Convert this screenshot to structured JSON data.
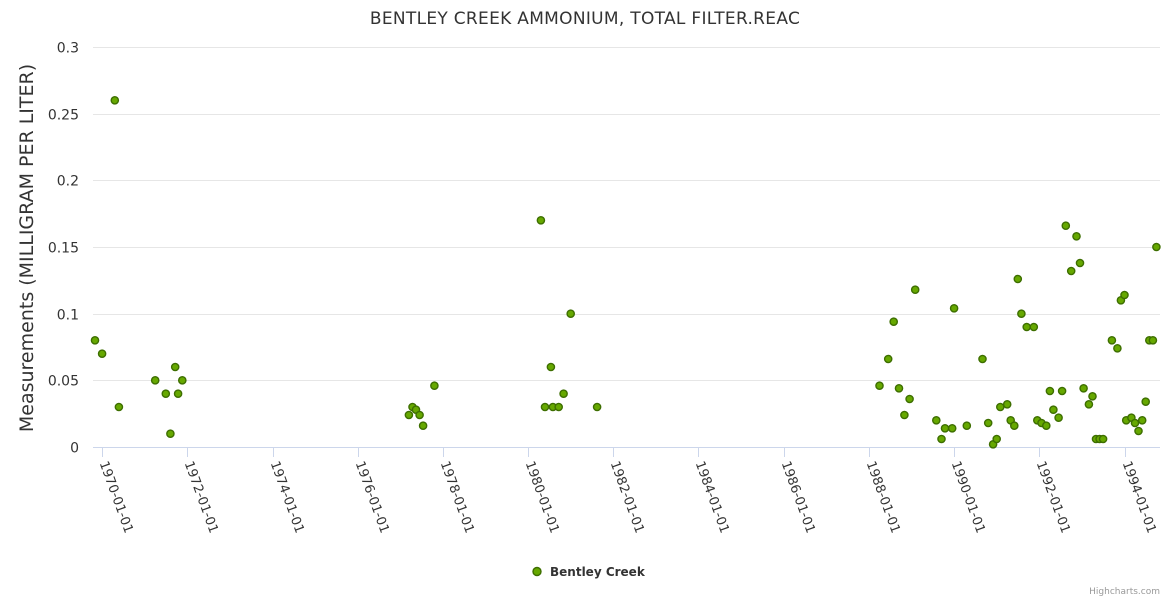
{
  "chart_data": {
    "type": "scatter",
    "title": "BENTLEY CREEK AMMONIUM, TOTAL FILTER.REAC",
    "ylabel": "Measurements (MILLIGRAM PER LITER)",
    "xlabel": "",
    "ylim": [
      0,
      0.3
    ],
    "yticks": [
      "0",
      "0.05",
      "0.1",
      "0.15",
      "0.2",
      "0.25",
      "0.3"
    ],
    "xlim": [
      "1969-10-15",
      "1994-11-01"
    ],
    "xticks": [
      "1970-01-01",
      "1972-01-01",
      "1974-01-01",
      "1976-01-01",
      "1978-01-01",
      "1980-01-01",
      "1982-01-01",
      "1984-01-01",
      "1986-01-01",
      "1988-01-01",
      "1990-01-01",
      "1992-01-01",
      "1994-01-01"
    ],
    "grid": true,
    "legend_position": "bottom-center",
    "marker_color": "#66a800",
    "marker_stroke": "#3d6e00",
    "series": [
      {
        "name": "Bentley Creek",
        "points": [
          [
            "1969-11-01",
            0.08
          ],
          [
            "1970-01-01",
            0.07
          ],
          [
            "1970-04-20",
            0.26
          ],
          [
            "1970-05-25",
            0.03
          ],
          [
            "1971-04-01",
            0.05
          ],
          [
            "1971-07-01",
            0.04
          ],
          [
            "1971-08-10",
            0.01
          ],
          [
            "1971-09-20",
            0.06
          ],
          [
            "1971-10-15",
            0.04
          ],
          [
            "1971-11-20",
            0.05
          ],
          [
            "1977-03-15",
            0.024
          ],
          [
            "1977-04-15",
            0.03
          ],
          [
            "1977-05-15",
            0.028
          ],
          [
            "1977-06-15",
            0.024
          ],
          [
            "1977-07-15",
            0.016
          ],
          [
            "1977-10-20",
            0.046
          ],
          [
            "1980-04-20",
            0.17
          ],
          [
            "1980-05-25",
            0.03
          ],
          [
            "1980-07-15",
            0.06
          ],
          [
            "1980-08-01",
            0.03
          ],
          [
            "1980-09-20",
            0.03
          ],
          [
            "1980-11-01",
            0.04
          ],
          [
            "1981-01-01",
            0.1
          ],
          [
            "1981-08-15",
            0.03
          ],
          [
            "1988-04-01",
            0.046
          ],
          [
            "1988-06-15",
            0.066
          ],
          [
            "1988-08-01",
            0.094
          ],
          [
            "1988-09-15",
            0.044
          ],
          [
            "1988-11-01",
            0.024
          ],
          [
            "1988-12-15",
            0.036
          ],
          [
            "1989-02-01",
            0.118
          ],
          [
            "1989-08-01",
            0.02
          ],
          [
            "1989-09-15",
            0.006
          ],
          [
            "1989-10-15",
            0.014
          ],
          [
            "1989-12-15",
            0.014
          ],
          [
            "1990-01-01",
            0.104
          ],
          [
            "1990-04-20",
            0.016
          ],
          [
            "1990-09-01",
            0.066
          ],
          [
            "1990-10-20",
            0.018
          ],
          [
            "1990-12-01",
            0.002
          ],
          [
            "1991-01-01",
            0.006
          ],
          [
            "1991-02-01",
            0.03
          ],
          [
            "1991-04-01",
            0.032
          ],
          [
            "1991-05-01",
            0.02
          ],
          [
            "1991-06-01",
            0.016
          ],
          [
            "1991-07-01",
            0.126
          ],
          [
            "1991-08-01",
            0.1
          ],
          [
            "1991-09-15",
            0.09
          ],
          [
            "1991-11-15",
            0.09
          ],
          [
            "1991-12-15",
            0.02
          ],
          [
            "1992-01-20",
            0.018
          ],
          [
            "1992-03-01",
            0.016
          ],
          [
            "1992-04-01",
            0.042
          ],
          [
            "1992-05-01",
            0.028
          ],
          [
            "1992-06-15",
            0.022
          ],
          [
            "1992-07-15",
            0.042
          ],
          [
            "1992-08-15",
            0.166
          ],
          [
            "1992-10-01",
            0.132
          ],
          [
            "1992-11-15",
            0.158
          ],
          [
            "1992-12-15",
            0.138
          ],
          [
            "1993-01-15",
            0.044
          ],
          [
            "1993-03-01",
            0.032
          ],
          [
            "1993-04-01",
            0.038
          ],
          [
            "1993-05-01",
            0.006
          ],
          [
            "1993-06-01",
            0.006
          ],
          [
            "1993-07-01",
            0.006
          ],
          [
            "1993-09-15",
            0.08
          ],
          [
            "1993-11-01",
            0.074
          ],
          [
            "1993-12-01",
            0.11
          ],
          [
            "1994-01-01",
            0.114
          ],
          [
            "1994-01-15",
            0.02
          ],
          [
            "1994-03-01",
            0.022
          ],
          [
            "1994-04-01",
            0.018
          ],
          [
            "1994-05-01",
            0.012
          ],
          [
            "1994-06-01",
            0.02
          ],
          [
            "1994-07-01",
            0.034
          ],
          [
            "1994-08-01",
            0.08
          ],
          [
            "1994-09-01",
            0.08
          ],
          [
            "1994-10-01",
            0.15
          ]
        ]
      }
    ]
  },
  "credits": "Highcharts.com"
}
